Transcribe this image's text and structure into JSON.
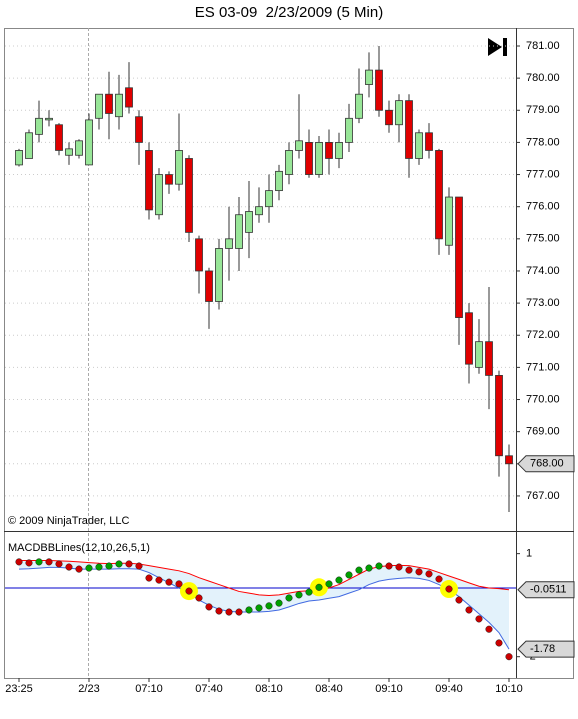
{
  "chart_data": [
    {
      "type": "candlestick",
      "title": "ES 03-09  2/23/2009 (5 Min)",
      "copyright": "© 2009 NinjaTrader, LLC",
      "categories": [
        "23:25",
        null,
        null,
        null,
        null,
        null,
        null,
        "2/23",
        null,
        null,
        null,
        null,
        null,
        "07:10",
        null,
        null,
        null,
        null,
        null,
        "07:40",
        null,
        null,
        null,
        null,
        null,
        "08:10",
        null,
        null,
        null,
        null,
        null,
        "08:40",
        null,
        null,
        null,
        null,
        null,
        "09:10",
        null,
        null,
        null,
        null,
        null,
        "09:40",
        null,
        null,
        null,
        null,
        null,
        "10:10"
      ],
      "open": [
        777.3,
        777.5,
        778.25,
        778.7,
        778.55,
        777.6,
        777.6,
        777.3,
        778.75,
        779.5,
        778.8,
        779.7,
        778.8,
        777.75,
        775.75,
        777.0,
        776.7,
        777.5,
        775.0,
        774.0,
        773.05,
        774.7,
        774.7,
        775.2,
        775.75,
        776.0,
        776.5,
        777.0,
        777.75,
        778.0,
        777.0,
        778.0,
        777.5,
        778.0,
        778.75,
        779.8,
        780.25,
        779.0,
        778.55,
        779.3,
        777.5,
        778.3,
        777.75,
        774.8,
        776.3,
        772.7,
        771.0,
        771.8,
        770.75,
        768.25
      ],
      "high": [
        777.8,
        778.4,
        779.3,
        779.0,
        778.6,
        778.0,
        778.1,
        778.9,
        779.5,
        780.2,
        780.1,
        780.5,
        779.0,
        778.0,
        777.2,
        777.1,
        778.9,
        777.6,
        775.1,
        774.1,
        775.0,
        776.0,
        776.3,
        776.8,
        776.6,
        777.0,
        777.3,
        778.0,
        779.5,
        778.4,
        778.2,
        778.4,
        778.3,
        779.2,
        780.3,
        780.8,
        781.0,
        779.3,
        779.5,
        779.5,
        778.4,
        778.6,
        777.8,
        776.6,
        776.3,
        773.0,
        772.5,
        773.5,
        770.9,
        768.6
      ],
      "low": [
        777.25,
        777.5,
        778.0,
        778.5,
        777.6,
        777.3,
        777.5,
        777.3,
        778.4,
        778.1,
        778.4,
        778.9,
        777.3,
        775.6,
        775.6,
        776.4,
        776.5,
        774.9,
        773.3,
        772.2,
        772.8,
        773.7,
        774.0,
        774.4,
        775.5,
        775.5,
        776.2,
        776.7,
        777.5,
        776.9,
        776.9,
        777.0,
        777.2,
        777.7,
        778.6,
        779.4,
        778.8,
        778.3,
        778.0,
        776.9,
        777.3,
        777.5,
        774.5,
        774.5,
        771.7,
        770.5,
        770.8,
        769.7,
        767.6,
        766.5
      ],
      "close": [
        777.75,
        778.3,
        778.75,
        778.75,
        777.75,
        777.8,
        778.05,
        778.7,
        779.5,
        778.9,
        779.5,
        779.1,
        778.0,
        775.9,
        777.0,
        776.7,
        777.75,
        775.2,
        774.0,
        773.05,
        774.7,
        775.0,
        775.75,
        775.85,
        776.0,
        776.5,
        777.1,
        777.75,
        778.05,
        777.0,
        778.0,
        777.5,
        778.0,
        778.75,
        779.5,
        780.25,
        779.0,
        778.55,
        779.3,
        777.5,
        778.3,
        777.75,
        775.0,
        776.3,
        772.55,
        771.1,
        771.8,
        770.75,
        768.25,
        768.0
      ],
      "up_color": "#98e698",
      "down_color": "#e00000",
      "last_price": {
        "value": 768,
        "label": "768.00"
      },
      "ylim": [
        765.94,
        781.56
      ],
      "yticks": [
        {
          "value": 767,
          "label": "767.00"
        },
        {
          "value": 768,
          "label": "768.00"
        },
        {
          "value": 769,
          "label": "769.00"
        },
        {
          "value": 770,
          "label": "770.00"
        },
        {
          "value": 771,
          "label": "771.00"
        },
        {
          "value": 772,
          "label": "772.00"
        },
        {
          "value": 773,
          "label": "773.00"
        },
        {
          "value": 774,
          "label": "774.00"
        },
        {
          "value": 775,
          "label": "775.00"
        },
        {
          "value": 776,
          "label": "776.00"
        },
        {
          "value": 777,
          "label": "777.00"
        },
        {
          "value": 778,
          "label": "778.00"
        },
        {
          "value": 779,
          "label": "779.00"
        },
        {
          "value": 780,
          "label": "780.00"
        },
        {
          "value": 781,
          "label": "781.00"
        }
      ],
      "grid": true
    },
    {
      "type": "macd_bands",
      "title": "MACDBBLines(12,10,26,5,1)",
      "values": [
        0.76,
        0.73,
        0.76,
        0.76,
        0.7,
        0.61,
        0.55,
        0.58,
        0.61,
        0.64,
        0.7,
        0.7,
        0.64,
        0.29,
        0.23,
        0.17,
        0.12,
        -0.09,
        -0.29,
        -0.55,
        -0.67,
        -0.7,
        -0.7,
        -0.64,
        -0.58,
        -0.52,
        -0.44,
        -0.29,
        -0.2,
        -0.12,
        0.02,
        0.12,
        0.23,
        0.38,
        0.52,
        0.58,
        0.64,
        0.64,
        0.61,
        0.52,
        0.47,
        0.41,
        0.26,
        -0.03,
        -0.35,
        -0.64,
        -0.9,
        -1.2,
        -1.6,
        -2.0
      ],
      "upper": [
        0.8,
        0.8,
        0.8,
        0.8,
        0.79,
        0.78,
        0.76,
        0.74,
        0.72,
        0.71,
        0.72,
        0.72,
        0.7,
        0.65,
        0.6,
        0.55,
        0.5,
        0.42,
        0.3,
        0.2,
        0.1,
        0.0,
        -0.1,
        -0.15,
        -0.2,
        -0.22,
        -0.2,
        -0.15,
        -0.1,
        -0.08,
        -0.05,
        0.0,
        0.1,
        0.25,
        0.4,
        0.55,
        0.62,
        0.65,
        0.66,
        0.65,
        0.6,
        0.55,
        0.45,
        0.35,
        0.25,
        0.15,
        0.05,
        0.0,
        -0.02,
        -0.0511
      ],
      "lower": [
        0.55,
        0.56,
        0.58,
        0.6,
        0.6,
        0.58,
        0.55,
        0.55,
        0.55,
        0.55,
        0.56,
        0.56,
        0.55,
        0.45,
        0.3,
        0.15,
        0.0,
        -0.15,
        -0.35,
        -0.5,
        -0.62,
        -0.68,
        -0.7,
        -0.7,
        -0.7,
        -0.68,
        -0.64,
        -0.55,
        -0.45,
        -0.38,
        -0.35,
        -0.3,
        -0.25,
        -0.15,
        -0.05,
        0.1,
        0.2,
        0.25,
        0.28,
        0.3,
        0.28,
        0.22,
        0.1,
        -0.05,
        -0.25,
        -0.5,
        -0.75,
        -1.0,
        -1.3,
        -1.78
      ],
      "upper_label": "-0.0511",
      "lower_label": "-1.78",
      "up_color": "#00a000",
      "down_color": "#cc0000",
      "upper_color": "#ff0000",
      "lower_color": "#4169e1",
      "band_fill": "#e3f2fb",
      "highlight_color": "#ffff00",
      "zero_line_color": "#0000cc",
      "ylim": [
        -2.62,
        1.63
      ],
      "yticks": [
        1,
        -2
      ]
    }
  ]
}
